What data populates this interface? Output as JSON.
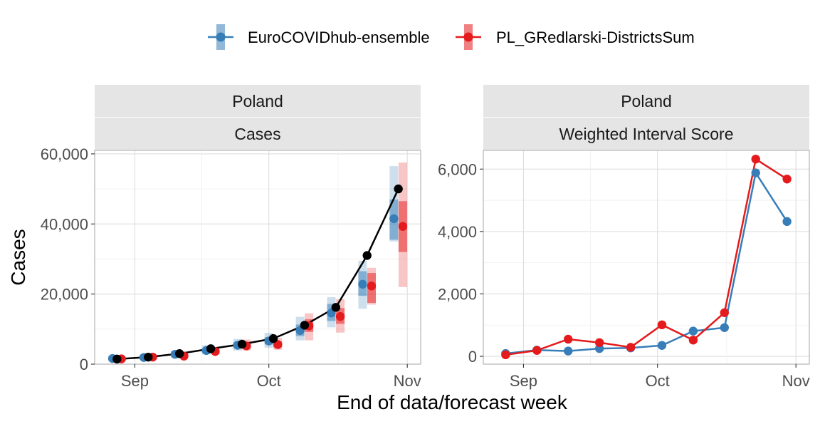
{
  "legend": {
    "items": [
      {
        "name": "EuroCOVIDhub-ensemble",
        "color": "#377eb8"
      },
      {
        "name": "PL_GRedlarski-DistrictsSum",
        "color": "#e41a1c"
      }
    ]
  },
  "x_axis_title": "End of data/forecast week",
  "chart_data": [
    {
      "type": "line",
      "strip_top": "Poland",
      "strip_bottom": "Cases",
      "ylabel": "Cases",
      "xlabel": "End of data/forecast week",
      "x_ticks": [
        "Sep",
        "Oct",
        "Nov"
      ],
      "x_tick_dates": [
        "2021-09-01",
        "2021-10-01",
        "2021-11-01"
      ],
      "y_ticks": [
        "0",
        "20,000",
        "40,000",
        "60,000"
      ],
      "ylim": [
        0,
        61000
      ],
      "xlim": [
        "2021-08-23",
        "2021-11-04"
      ],
      "grid": true,
      "observed": {
        "color": "#000000",
        "x": [
          "2021-08-28",
          "2021-09-04",
          "2021-09-11",
          "2021-09-18",
          "2021-09-25",
          "2021-10-02",
          "2021-10-09",
          "2021-10-16",
          "2021-10-23",
          "2021-10-30"
        ],
        "y": [
          1450,
          2000,
          3000,
          4400,
          5700,
          7300,
          11100,
          16200,
          31000,
          50000
        ]
      },
      "series": [
        {
          "name": "EuroCOVIDhub-ensemble",
          "color": "#377eb8",
          "x": [
            "2021-08-27",
            "2021-09-03",
            "2021-09-10",
            "2021-09-17",
            "2021-09-24",
            "2021-10-01",
            "2021-10-08",
            "2021-10-15",
            "2021-10-22",
            "2021-10-29"
          ],
          "median": [
            1600,
            1900,
            2800,
            3900,
            5400,
            6600,
            9600,
            14600,
            22800,
            41500
          ],
          "inner": [
            [
              1300,
              1950
            ],
            [
              1550,
              2300
            ],
            [
              2300,
              3300
            ],
            [
              3300,
              4600
            ],
            [
              4600,
              6300
            ],
            [
              5600,
              7700
            ],
            [
              8000,
              11300
            ],
            [
              12300,
              17200
            ],
            [
              19500,
              26500
            ],
            [
              35500,
              47000
            ]
          ],
          "outer": [
            [
              1000,
              2300
            ],
            [
              1200,
              2700
            ],
            [
              1900,
              3800
            ],
            [
              2800,
              5400
            ],
            [
              3900,
              7200
            ],
            [
              4700,
              8900
            ],
            [
              6800,
              13500
            ],
            [
              10500,
              19100
            ],
            [
              15800,
              29500
            ],
            [
              35000,
              56500
            ]
          ]
        },
        {
          "name": "PL_GRedlarski-DistrictsSum",
          "color": "#e41a1c",
          "x": [
            "2021-08-29",
            "2021-09-05",
            "2021-09-12",
            "2021-09-19",
            "2021-09-26",
            "2021-10-03",
            "2021-10-10",
            "2021-10-17",
            "2021-10-24",
            "2021-10-31"
          ],
          "median": [
            1500,
            2000,
            2300,
            3600,
            5200,
            5600,
            10900,
            13600,
            22300,
            39300
          ],
          "inner": [
            [
              1300,
              1800
            ],
            [
              1700,
              2400
            ],
            [
              2000,
              2700
            ],
            [
              3100,
              4200
            ],
            [
              4500,
              6000
            ],
            [
              4800,
              6500
            ],
            [
              9200,
              12800
            ],
            [
              11500,
              16000
            ],
            [
              17500,
              26000
            ],
            [
              32000,
              46500
            ]
          ],
          "outer": [
            [
              1100,
              2000
            ],
            [
              1500,
              2700
            ],
            [
              1800,
              3000
            ],
            [
              2800,
              4700
            ],
            [
              3900,
              7000
            ],
            [
              4100,
              7500
            ],
            [
              6800,
              14500
            ],
            [
              9000,
              18500
            ],
            [
              17000,
              27500
            ],
            [
              22000,
              57500
            ]
          ]
        }
      ]
    },
    {
      "type": "line",
      "strip_top": "Poland",
      "strip_bottom": "Weighted Interval Score",
      "x_ticks": [
        "Sep",
        "Oct",
        "Nov"
      ],
      "x_tick_dates": [
        "2021-09-01",
        "2021-10-01",
        "2021-11-01"
      ],
      "y_ticks": [
        "0",
        "2,000",
        "4,000",
        "6,000"
      ],
      "ylim": [
        -250,
        6600
      ],
      "xlim": [
        "2021-08-23",
        "2021-11-04"
      ],
      "grid": true,
      "series": [
        {
          "name": "EuroCOVIDhub-ensemble",
          "color": "#377eb8",
          "x": [
            "2021-08-28",
            "2021-09-04",
            "2021-09-11",
            "2021-09-18",
            "2021-09-25",
            "2021-10-02",
            "2021-10-09",
            "2021-10-16",
            "2021-10-23",
            "2021-10-30"
          ],
          "y": [
            90,
            200,
            170,
            250,
            270,
            350,
            810,
            920,
            5880,
            4320
          ]
        },
        {
          "name": "PL_GRedlarski-DistrictsSum",
          "color": "#e41a1c",
          "x": [
            "2021-08-28",
            "2021-09-04",
            "2021-09-11",
            "2021-09-18",
            "2021-09-25",
            "2021-10-02",
            "2021-10-09",
            "2021-10-16",
            "2021-10-23",
            "2021-10-30"
          ],
          "y": [
            50,
            190,
            550,
            440,
            290,
            1010,
            520,
            1400,
            6320,
            5680
          ]
        }
      ]
    }
  ]
}
